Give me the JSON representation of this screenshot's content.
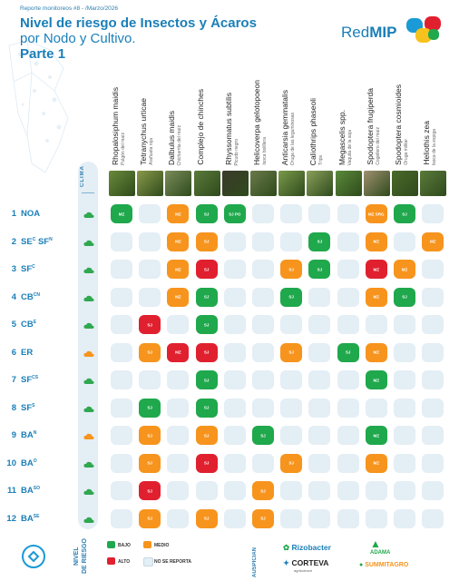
{
  "header": {
    "report": "Reporte monitoreos #8 - /Marzo/2026",
    "title_line1": "Nivel de riesgo de Insectos y Ácaros",
    "title_line2": "por Nodo y Cultivo.",
    "title_line3": "Parte 1",
    "logo_text_a": "Red",
    "logo_text_b": "MIP"
  },
  "clima_label": "CLIMA",
  "columns": [
    {
      "name": "Rhopalosiphum maidis",
      "common": "Pulgón del maíz",
      "thumb": "#6a8a3a"
    },
    {
      "name": "Tetranychus urticae",
      "common": "Arañuela roja",
      "thumb": "#8a9a4a"
    },
    {
      "name": "Dalbulus maidis",
      "common": "Chicharrita del maíz",
      "thumb": "#7a8c5a"
    },
    {
      "name": "Complejo de chinches",
      "common": "",
      "thumb": "#5a7a3a"
    },
    {
      "name": "Rhyssomatus subtilis",
      "common": "Picudo negro",
      "thumb": "#3a3a2a"
    },
    {
      "name": "Helicoverpa gelotopoeon",
      "common": "Isoca bolillera",
      "thumb": "#6a7a4a"
    },
    {
      "name": "Anticarsia gemmatalis",
      "common": "Oruga de las leguminosas",
      "thumb": "#7a9a4a"
    },
    {
      "name": "Caliothrips phaseoli",
      "common": "Trips",
      "thumb": "#8aa05a"
    },
    {
      "name": "Megascelis spp.",
      "common": "Vaquita de la soja",
      "thumb": "#5a8a3a"
    },
    {
      "name": "Spodoptera frugiperda",
      "common": "Cogollero del maíz",
      "thumb": "#a09070"
    },
    {
      "name": "Spodoptera cosmioides",
      "common": "Oruga militar",
      "thumb": "#4a6a2a"
    },
    {
      "name": "Heliothis zea",
      "common": "Isoca de la espiga",
      "thumb": "#5a7a3a"
    }
  ],
  "rows": [
    {
      "num": "1",
      "label": "NOA",
      "sup": "",
      "label2": "",
      "sup2": "",
      "cloud": "#2fa84f",
      "cells": [
        [
          "g",
          "MZ"
        ],
        [
          "e",
          ""
        ],
        [
          "o",
          "MZ"
        ],
        [
          "g",
          "SJ"
        ],
        [
          "g",
          "SJ PO"
        ],
        [
          "e",
          ""
        ],
        [
          "e",
          ""
        ],
        [
          "e",
          ""
        ],
        [
          "e",
          ""
        ],
        [
          "o",
          "MZ SRG"
        ],
        [
          "g",
          "SJ"
        ],
        [
          "e",
          ""
        ]
      ]
    },
    {
      "num": "2",
      "label": "SE",
      "sup": "C",
      "label2": "SF",
      "sup2": "N",
      "cloud": "#2fa84f",
      "cells": [
        [
          "e",
          ""
        ],
        [
          "e",
          ""
        ],
        [
          "o",
          "MZ"
        ],
        [
          "o",
          "SJ"
        ],
        [
          "e",
          ""
        ],
        [
          "e",
          ""
        ],
        [
          "e",
          ""
        ],
        [
          "g",
          "SJ"
        ],
        [
          "e",
          ""
        ],
        [
          "o",
          "MZ"
        ],
        [
          "e",
          ""
        ],
        [
          "o",
          "MZ"
        ]
      ]
    },
    {
      "num": "3",
      "label": "SF",
      "sup": "C",
      "label2": "",
      "sup2": "",
      "cloud": "#2fa84f",
      "cells": [
        [
          "e",
          ""
        ],
        [
          "e",
          ""
        ],
        [
          "o",
          "MZ"
        ],
        [
          "r",
          "SJ"
        ],
        [
          "e",
          ""
        ],
        [
          "e",
          ""
        ],
        [
          "o",
          "SJ"
        ],
        [
          "g",
          "SJ"
        ],
        [
          "e",
          ""
        ],
        [
          "r",
          "MZ"
        ],
        [
          "o",
          "MZ"
        ],
        [
          "e",
          ""
        ]
      ]
    },
    {
      "num": "4",
      "label": "CB",
      "sup": "CN",
      "label2": "",
      "sup2": "",
      "cloud": "#2fa84f",
      "cells": [
        [
          "e",
          ""
        ],
        [
          "e",
          ""
        ],
        [
          "o",
          "MZ"
        ],
        [
          "g",
          "SJ"
        ],
        [
          "e",
          ""
        ],
        [
          "e",
          ""
        ],
        [
          "g",
          "SJ"
        ],
        [
          "e",
          ""
        ],
        [
          "e",
          ""
        ],
        [
          "o",
          "MZ"
        ],
        [
          "g",
          "SJ"
        ],
        [
          "e",
          ""
        ]
      ]
    },
    {
      "num": "5",
      "label": "CB",
      "sup": "E",
      "label2": "",
      "sup2": "",
      "cloud": "#2fa84f",
      "cells": [
        [
          "e",
          ""
        ],
        [
          "r",
          "SJ"
        ],
        [
          "e",
          ""
        ],
        [
          "g",
          "SJ"
        ],
        [
          "e",
          ""
        ],
        [
          "e",
          ""
        ],
        [
          "e",
          ""
        ],
        [
          "e",
          ""
        ],
        [
          "e",
          ""
        ],
        [
          "e",
          ""
        ],
        [
          "e",
          ""
        ],
        [
          "e",
          ""
        ]
      ]
    },
    {
      "num": "6",
      "label": "ER",
      "sup": "",
      "label2": "",
      "sup2": "",
      "cloud": "#f7941d",
      "cells": [
        [
          "e",
          ""
        ],
        [
          "o",
          "SJ"
        ],
        [
          "r",
          "MZ"
        ],
        [
          "r",
          "SJ"
        ],
        [
          "e",
          ""
        ],
        [
          "e",
          ""
        ],
        [
          "o",
          "SJ"
        ],
        [
          "e",
          ""
        ],
        [
          "g",
          "SJ"
        ],
        [
          "o",
          "MZ"
        ],
        [
          "e",
          ""
        ],
        [
          "e",
          ""
        ]
      ]
    },
    {
      "num": "7",
      "label": "SF",
      "sup": "CS",
      "label2": "",
      "sup2": "",
      "cloud": "#2fa84f",
      "cells": [
        [
          "e",
          ""
        ],
        [
          "e",
          ""
        ],
        [
          "e",
          ""
        ],
        [
          "g",
          "SJ"
        ],
        [
          "e",
          ""
        ],
        [
          "e",
          ""
        ],
        [
          "e",
          ""
        ],
        [
          "e",
          ""
        ],
        [
          "e",
          ""
        ],
        [
          "g",
          "MZ"
        ],
        [
          "e",
          ""
        ],
        [
          "e",
          ""
        ]
      ]
    },
    {
      "num": "8",
      "label": "SF",
      "sup": "S",
      "label2": "",
      "sup2": "",
      "cloud": "#2fa84f",
      "cells": [
        [
          "e",
          ""
        ],
        [
          "g",
          "SJ"
        ],
        [
          "e",
          ""
        ],
        [
          "g",
          "SJ"
        ],
        [
          "e",
          ""
        ],
        [
          "e",
          ""
        ],
        [
          "e",
          ""
        ],
        [
          "e",
          ""
        ],
        [
          "e",
          ""
        ],
        [
          "e",
          ""
        ],
        [
          "e",
          ""
        ],
        [
          "e",
          ""
        ]
      ]
    },
    {
      "num": "9",
      "label": "BA",
      "sup": "N",
      "label2": "",
      "sup2": "",
      "cloud": "#f7941d",
      "cells": [
        [
          "e",
          ""
        ],
        [
          "o",
          "SJ"
        ],
        [
          "e",
          ""
        ],
        [
          "o",
          "SJ"
        ],
        [
          "e",
          ""
        ],
        [
          "g",
          "SJ"
        ],
        [
          "e",
          ""
        ],
        [
          "e",
          ""
        ],
        [
          "e",
          ""
        ],
        [
          "g",
          "MZ"
        ],
        [
          "e",
          ""
        ],
        [
          "e",
          ""
        ]
      ]
    },
    {
      "num": "10",
      "label": "BA",
      "sup": "O",
      "label2": "",
      "sup2": "",
      "cloud": "#2fa84f",
      "cells": [
        [
          "e",
          ""
        ],
        [
          "o",
          "SJ"
        ],
        [
          "e",
          ""
        ],
        [
          "r",
          "SJ"
        ],
        [
          "e",
          ""
        ],
        [
          "e",
          ""
        ],
        [
          "o",
          "SJ"
        ],
        [
          "e",
          ""
        ],
        [
          "e",
          ""
        ],
        [
          "o",
          "MZ"
        ],
        [
          "e",
          ""
        ],
        [
          "e",
          ""
        ]
      ]
    },
    {
      "num": "11",
      "label": "BA",
      "sup": "SO",
      "label2": "",
      "sup2": "",
      "cloud": "#2fa84f",
      "cells": [
        [
          "e",
          ""
        ],
        [
          "r",
          "SJ"
        ],
        [
          "e",
          ""
        ],
        [
          "e",
          ""
        ],
        [
          "e",
          ""
        ],
        [
          "o",
          "SJ"
        ],
        [
          "e",
          ""
        ],
        [
          "e",
          ""
        ],
        [
          "e",
          ""
        ],
        [
          "e",
          ""
        ],
        [
          "e",
          ""
        ],
        [
          "e",
          ""
        ]
      ]
    },
    {
      "num": "12",
      "label": "BA",
      "sup": "SE",
      "label2": "",
      "sup2": "",
      "cloud": "#2fa84f",
      "cells": [
        [
          "e",
          ""
        ],
        [
          "o",
          "SJ"
        ],
        [
          "e",
          ""
        ],
        [
          "o",
          "SJ"
        ],
        [
          "e",
          ""
        ],
        [
          "o",
          "SJ"
        ],
        [
          "e",
          ""
        ],
        [
          "e",
          ""
        ],
        [
          "e",
          ""
        ],
        [
          "e",
          ""
        ],
        [
          "e",
          ""
        ],
        [
          "e",
          ""
        ]
      ]
    }
  ],
  "legend": {
    "title_line1": "NIVEL",
    "title_line2": "DE RIESGO",
    "bajo": "BAJO",
    "medio": "MEDIO",
    "alto": "ALTO",
    "no_reporta": "NO SE REPORTA"
  },
  "colors": {
    "green": "#1fa84c",
    "orange": "#f7941d",
    "red": "#e0202f",
    "empty": "#e4eef5",
    "blue": "#1a7fb8"
  },
  "auspician": "AUSPICIAN",
  "sponsors": {
    "rizobacter": "Rizobacter",
    "corteva": "CORTEVA",
    "corteva_sub": "agriscience",
    "adama": "ADAMA",
    "summit": "SUMMITAGRO"
  }
}
